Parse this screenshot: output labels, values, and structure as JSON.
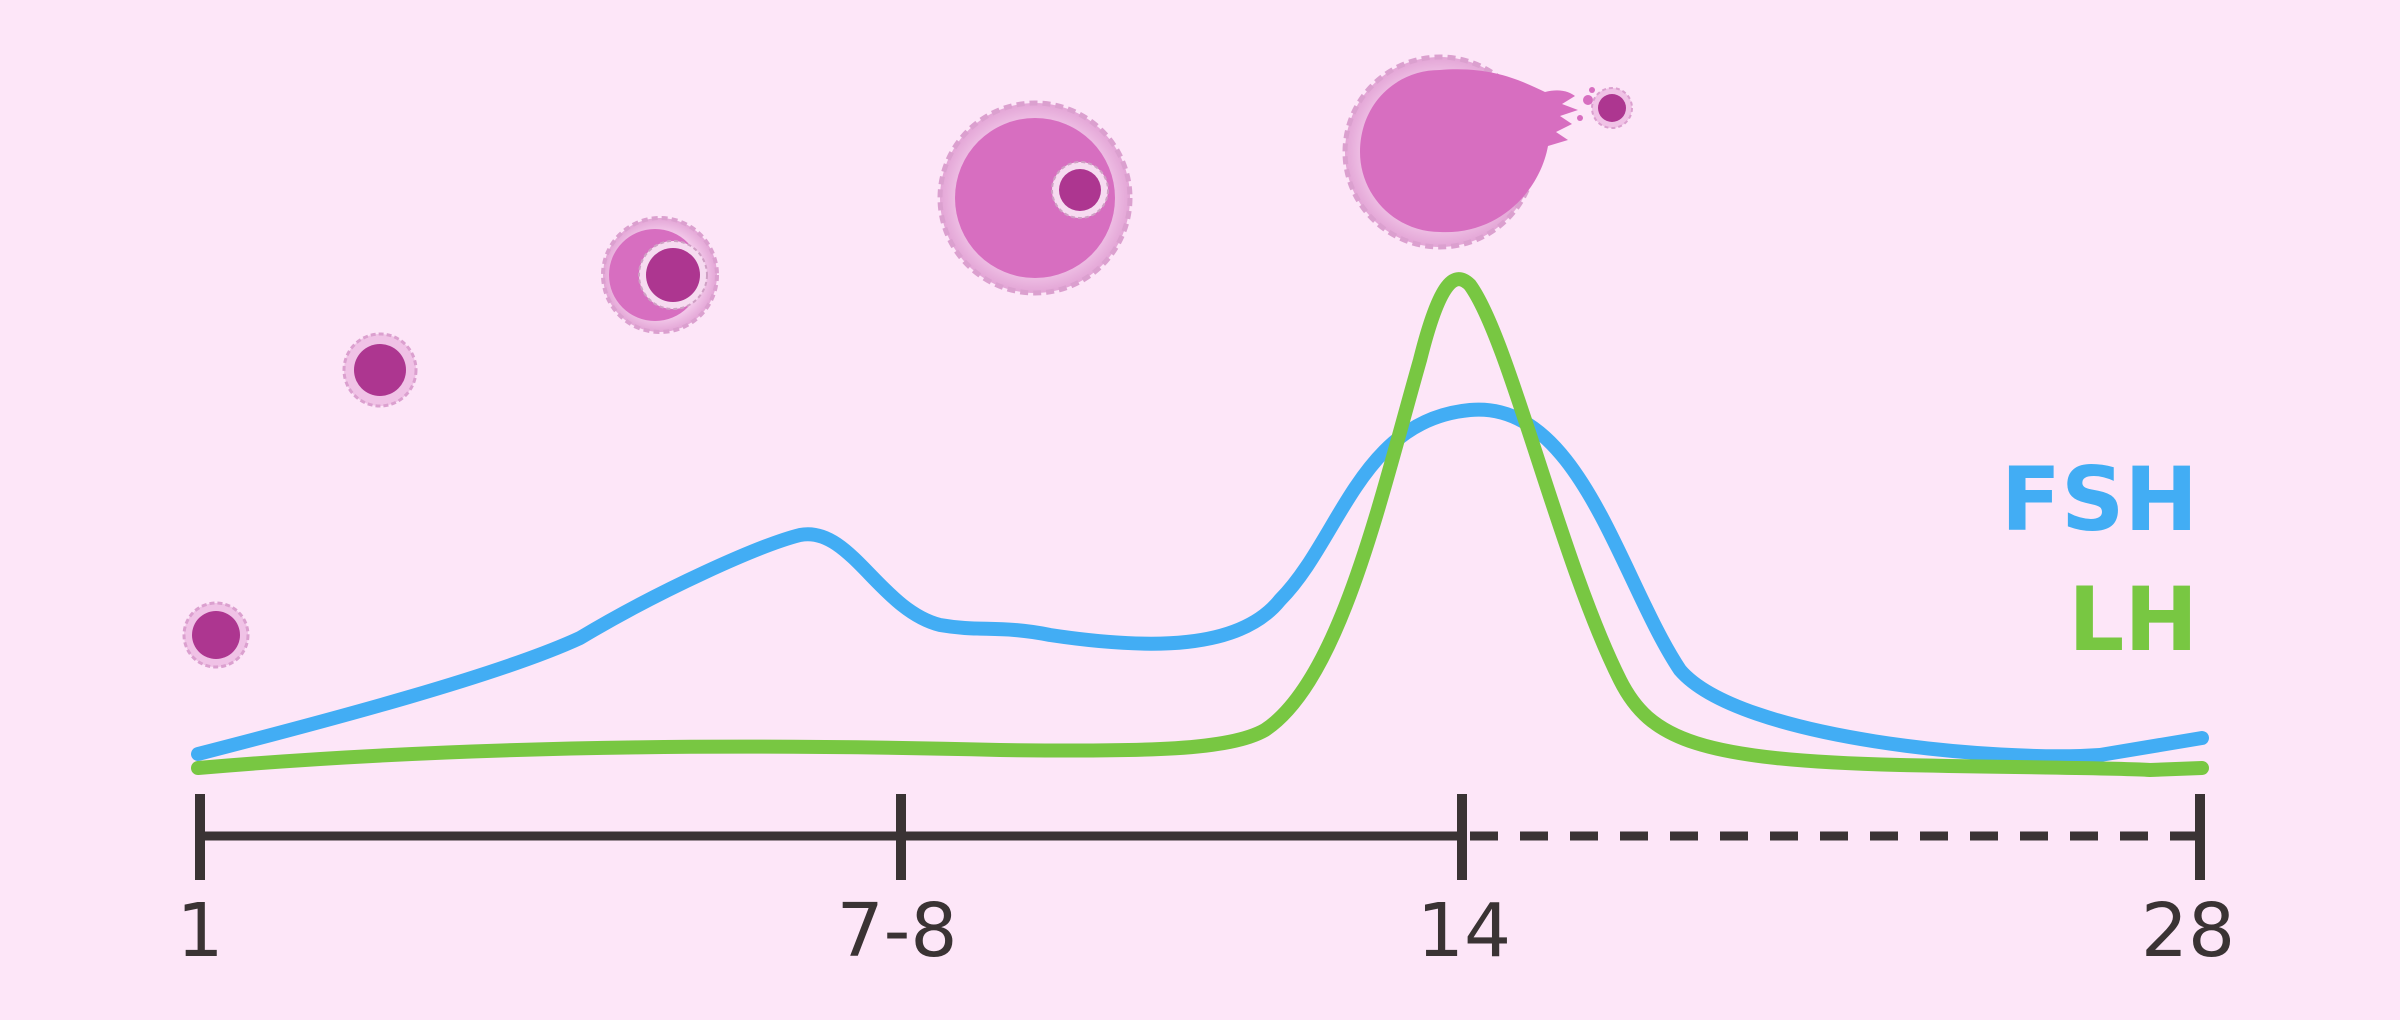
{
  "axis": {
    "ticks": [
      {
        "label": "1"
      },
      {
        "label": "7-8"
      },
      {
        "label": "14"
      },
      {
        "label": "28"
      }
    ]
  },
  "legend": [
    {
      "label": "FSH",
      "color": "#42adf4"
    },
    {
      "label": "LH",
      "color": "#78c742"
    }
  ],
  "colors": {
    "background": "#fde6f8",
    "axis": "#3a3334",
    "follicle_fill": "#d76ec0",
    "follicle_rim": "#edb9e4",
    "oocyte": "#ad3690"
  },
  "follicle_stages": [
    {
      "name": "primordial",
      "icon": "follicle-primordial-icon"
    },
    {
      "name": "primary",
      "icon": "follicle-primary-icon"
    },
    {
      "name": "secondary",
      "icon": "follicle-secondary-icon"
    },
    {
      "name": "antral",
      "icon": "follicle-antral-icon"
    },
    {
      "name": "ovulation",
      "icon": "ovulation-icon"
    }
  ]
}
